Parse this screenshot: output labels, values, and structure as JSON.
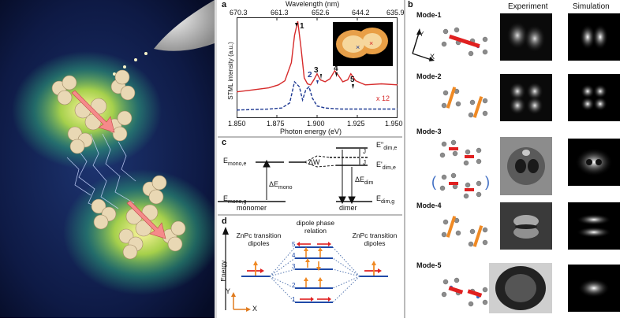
{
  "panels": {
    "a": "a",
    "b": "b",
    "c": "c",
    "d": "d"
  },
  "panel_a": {
    "top_axis_label": "Wavelength (nm)",
    "top_ticks": [
      "670.3",
      "661.3",
      "652.6",
      "644.2",
      "635.9"
    ],
    "bottom_axis_label": "Photon energy (eV)",
    "bottom_ticks": [
      "1.850",
      "1.875",
      "1.900",
      "1.925",
      "1.950"
    ],
    "y_axis_label": "STML intensity (a.u.)",
    "peak_labels": [
      "1",
      "2",
      "3",
      "4",
      "5"
    ],
    "scale_note": "x 12"
  },
  "chart_data": {
    "type": "line",
    "xlabel": "Photon energy (eV)",
    "ylabel": "STML intensity (a.u.)",
    "xlim": [
      1.85,
      1.95
    ],
    "series": [
      {
        "style": "solid",
        "color": "#d62a2a",
        "x": [
          1.85,
          1.86,
          1.87,
          1.876,
          1.88,
          1.884,
          1.886,
          1.888,
          1.89,
          1.892,
          1.894,
          1.896,
          1.898,
          1.9,
          1.902,
          1.905,
          1.908,
          1.911,
          1.913,
          1.916,
          1.919,
          1.921,
          1.924,
          1.93,
          1.94,
          1.95
        ],
        "y": [
          0.26,
          0.28,
          0.3,
          0.33,
          0.37,
          0.55,
          0.82,
          0.96,
          0.7,
          0.4,
          0.34,
          0.33,
          0.38,
          0.44,
          0.38,
          0.36,
          0.39,
          0.47,
          0.43,
          0.36,
          0.38,
          0.44,
          0.37,
          0.33,
          0.34,
          0.33
        ]
      },
      {
        "style": "dashed",
        "color": "#1f3a93",
        "x": [
          1.85,
          1.86,
          1.87,
          1.878,
          1.883,
          1.886,
          1.889,
          1.891,
          1.893,
          1.895,
          1.897,
          1.9,
          1.905,
          1.915,
          1.93,
          1.95
        ],
        "y": [
          0.08,
          0.085,
          0.09,
          0.1,
          0.15,
          0.36,
          0.31,
          0.18,
          0.28,
          0.31,
          0.2,
          0.12,
          0.1,
          0.09,
          0.09,
          0.09
        ]
      }
    ]
  },
  "panel_c": {
    "e_mono_e": "E",
    "e_mono_e_sub": "mono,e",
    "e_mono_g": "E",
    "e_mono_g_sub": "mono,g",
    "delta_mono": "ΔE",
    "delta_mono_sub": "mono",
    "delta_w": "ΔW",
    "delta_dim": "ΔE",
    "delta_dim_sub": "dim",
    "e2_dim": "E\"",
    "e2_dim_sub": "dim,e",
    "e1_dim": "E'",
    "e1_dim_sub": "dim,e",
    "e_dim_g": "E",
    "e_dim_g_sub": "dim,g",
    "j1": "J",
    "j2": "J",
    "monomer": "monomer",
    "dimer": "dimer"
  },
  "panel_d": {
    "left_label": "ZnPc transition dipoles",
    "center_label": "dipole phase relation",
    "right_label": "ZnPc transition dipoles",
    "energy_label": "Energy",
    "x_label": "X",
    "y_label": "Y",
    "levels": [
      "5",
      "4",
      "3",
      "2",
      "1"
    ]
  },
  "panel_b": {
    "col_experiment": "Experiment",
    "col_simulation": "Simulation",
    "modes": [
      "Mode-1",
      "Mode-2",
      "Mode-3",
      "Mode-4",
      "Mode-5"
    ],
    "axis_x": "X",
    "axis_y": "Y"
  },
  "colors": {
    "red_curve": "#d62a2a",
    "blue_curve": "#1f3a93",
    "dipole_orange": "#f08a24",
    "dipole_red": "#e02020",
    "level_blue": "#1f4aa8"
  }
}
